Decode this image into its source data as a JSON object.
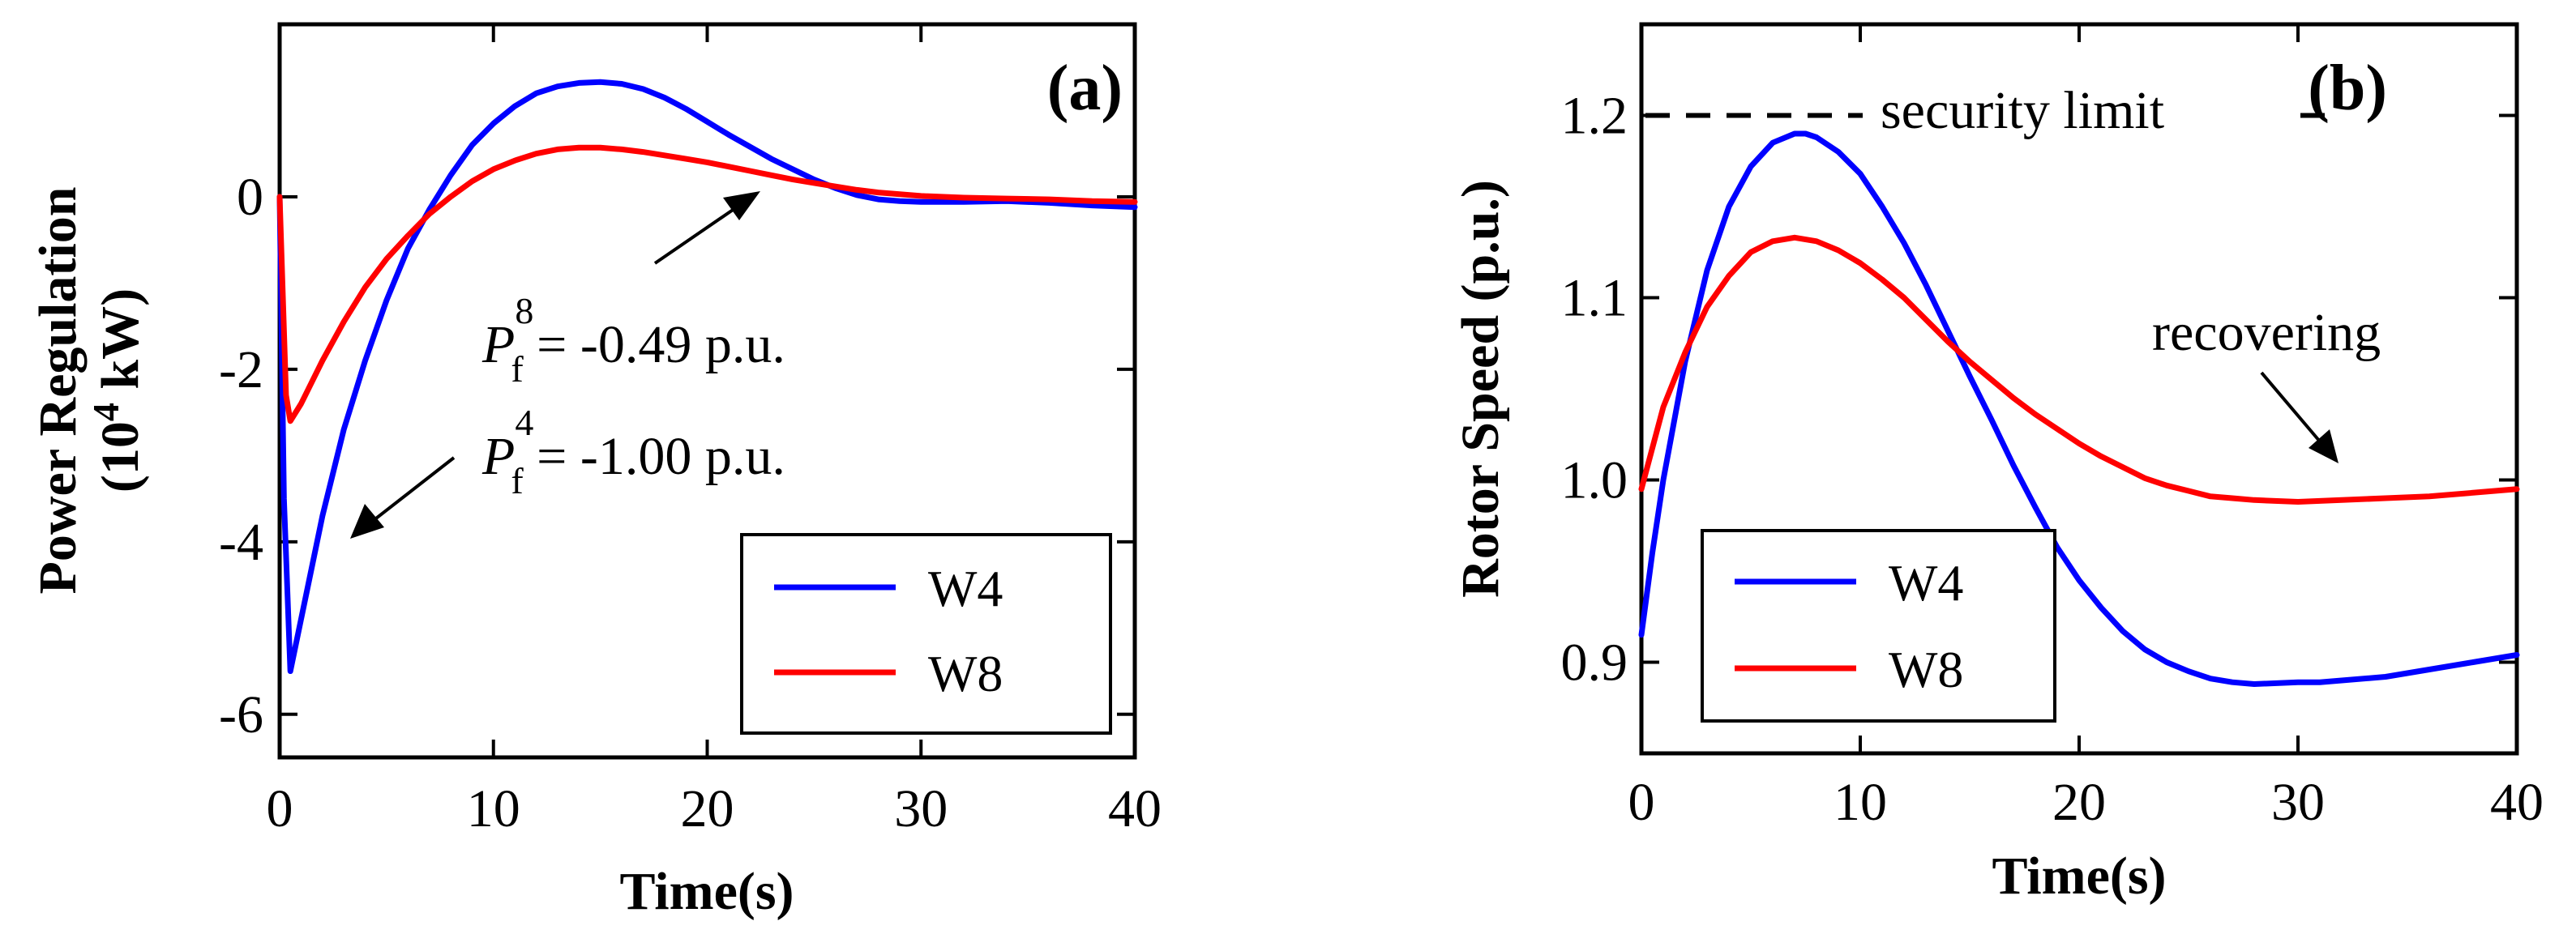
{
  "chart_data": [
    {
      "type": "line",
      "panel_label": "(a)",
      "xlabel": "Time(s)",
      "ylabel_line1": "Power Regulation",
      "ylabel_line2_pre": "(10",
      "ylabel_line2_sup": "4",
      "ylabel_line2_post": " kW)",
      "xlim": [
        0,
        40
      ],
      "ylim": [
        -6.5,
        2.0
      ],
      "xticks": [
        0,
        10,
        20,
        30,
        40
      ],
      "xtick_labels": [
        "0",
        "10",
        "20",
        "30",
        "40"
      ],
      "yticks": [
        -6,
        -4,
        -2,
        0
      ],
      "ytick_labels": [
        "-6",
        "-4",
        "-2",
        "0"
      ],
      "legend_position": "bottom-right",
      "series": [
        {
          "name": "W4",
          "color": "#0000ff",
          "points": [
            [
              0,
              0
            ],
            [
              0.2,
              -3.5
            ],
            [
              0.5,
              -5.5
            ],
            [
              1,
              -4.9
            ],
            [
              2,
              -3.7
            ],
            [
              3,
              -2.7
            ],
            [
              4,
              -1.9
            ],
            [
              5,
              -1.2
            ],
            [
              6,
              -0.6
            ],
            [
              7,
              -0.15
            ],
            [
              8,
              0.25
            ],
            [
              9,
              0.6
            ],
            [
              10,
              0.85
            ],
            [
              11,
              1.05
            ],
            [
              12,
              1.2
            ],
            [
              13,
              1.28
            ],
            [
              14,
              1.32
            ],
            [
              15,
              1.33
            ],
            [
              16,
              1.31
            ],
            [
              17,
              1.25
            ],
            [
              18,
              1.15
            ],
            [
              19,
              1.02
            ],
            [
              20,
              0.87
            ],
            [
              21,
              0.72
            ],
            [
              22,
              0.58
            ],
            [
              23,
              0.44
            ],
            [
              24,
              0.32
            ],
            [
              25,
              0.2
            ],
            [
              26,
              0.1
            ],
            [
              27,
              0.02
            ],
            [
              28,
              -0.03
            ],
            [
              29,
              -0.05
            ],
            [
              30,
              -0.06
            ],
            [
              32,
              -0.06
            ],
            [
              34,
              -0.05
            ],
            [
              36,
              -0.07
            ],
            [
              38,
              -0.1
            ],
            [
              40,
              -0.12
            ]
          ]
        },
        {
          "name": "W8",
          "color": "#ff0000",
          "points": [
            [
              0,
              0
            ],
            [
              0.3,
              -2.3
            ],
            [
              0.5,
              -2.6
            ],
            [
              1,
              -2.4
            ],
            [
              2,
              -1.9
            ],
            [
              3,
              -1.45
            ],
            [
              4,
              -1.05
            ],
            [
              5,
              -0.72
            ],
            [
              6,
              -0.45
            ],
            [
              7,
              -0.2
            ],
            [
              8,
              0
            ],
            [
              9,
              0.18
            ],
            [
              10,
              0.32
            ],
            [
              11,
              0.42
            ],
            [
              12,
              0.5
            ],
            [
              13,
              0.55
            ],
            [
              14,
              0.57
            ],
            [
              15,
              0.57
            ],
            [
              16,
              0.55
            ],
            [
              17,
              0.52
            ],
            [
              18,
              0.48
            ],
            [
              19,
              0.44
            ],
            [
              20,
              0.4
            ],
            [
              21,
              0.35
            ],
            [
              22,
              0.3
            ],
            [
              23,
              0.25
            ],
            [
              24,
              0.2
            ],
            [
              25,
              0.16
            ],
            [
              26,
              0.12
            ],
            [
              27,
              0.08
            ],
            [
              28,
              0.05
            ],
            [
              29,
              0.03
            ],
            [
              30,
              0.01
            ],
            [
              32,
              -0.01
            ],
            [
              34,
              -0.02
            ],
            [
              36,
              -0.03
            ],
            [
              38,
              -0.05
            ],
            [
              40,
              -0.06
            ]
          ]
        }
      ],
      "annotations": [
        {
          "base": "P",
          "sub": "f",
          "sup": "8",
          "rest": " = -0.49 p.u."
        },
        {
          "base": "P",
          "sub": "f",
          "sup": "4",
          "rest": " = -1.00 p.u."
        }
      ]
    },
    {
      "type": "line",
      "panel_label": "(b)",
      "xlabel": "Time(s)",
      "ylabel": "Rotor Speed (p.u.)",
      "xlim": [
        0,
        40
      ],
      "ylim": [
        0.85,
        1.25
      ],
      "xticks": [
        0,
        10,
        20,
        30,
        40
      ],
      "xtick_labels": [
        "0",
        "10",
        "20",
        "30",
        "40"
      ],
      "yticks": [
        0.9,
        1.0,
        1.1,
        1.2
      ],
      "ytick_labels": [
        "0.9",
        "1.0",
        "1.1",
        "1.2"
      ],
      "legend_position": "bottom-left",
      "security_limit": {
        "value": 1.2,
        "label": "security limit"
      },
      "series": [
        {
          "name": "W4",
          "color": "#0000ff",
          "points": [
            [
              0,
              0.915
            ],
            [
              0.5,
              0.96
            ],
            [
              1,
              1.0
            ],
            [
              2,
              1.065
            ],
            [
              3,
              1.115
            ],
            [
              4,
              1.15
            ],
            [
              5,
              1.172
            ],
            [
              6,
              1.185
            ],
            [
              7,
              1.19
            ],
            [
              7.5,
              1.19
            ],
            [
              8,
              1.188
            ],
            [
              9,
              1.18
            ],
            [
              10,
              1.168
            ],
            [
              11,
              1.15
            ],
            [
              12,
              1.13
            ],
            [
              13,
              1.107
            ],
            [
              14,
              1.082
            ],
            [
              15,
              1.057
            ],
            [
              16,
              1.033
            ],
            [
              17,
              1.008
            ],
            [
              18,
              0.985
            ],
            [
              19,
              0.963
            ],
            [
              20,
              0.945
            ],
            [
              21,
              0.93
            ],
            [
              22,
              0.917
            ],
            [
              23,
              0.907
            ],
            [
              24,
              0.9
            ],
            [
              25,
              0.895
            ],
            [
              26,
              0.891
            ],
            [
              27,
              0.889
            ],
            [
              28,
              0.888
            ],
            [
              30,
              0.889
            ],
            [
              31,
              0.889
            ],
            [
              32,
              0.89
            ],
            [
              34,
              0.892
            ],
            [
              36,
              0.896
            ],
            [
              38,
              0.9
            ],
            [
              40,
              0.904
            ]
          ]
        },
        {
          "name": "W8",
          "color": "#ff0000",
          "points": [
            [
              0,
              0.995
            ],
            [
              1,
              1.04
            ],
            [
              2,
              1.07
            ],
            [
              3,
              1.095
            ],
            [
              4,
              1.112
            ],
            [
              5,
              1.125
            ],
            [
              6,
              1.131
            ],
            [
              7,
              1.133
            ],
            [
              8,
              1.131
            ],
            [
              9,
              1.126
            ],
            [
              10,
              1.119
            ],
            [
              11,
              1.11
            ],
            [
              12,
              1.1
            ],
            [
              13,
              1.088
            ],
            [
              14,
              1.076
            ],
            [
              15,
              1.065
            ],
            [
              16,
              1.055
            ],
            [
              17,
              1.045
            ],
            [
              18,
              1.036
            ],
            [
              19,
              1.028
            ],
            [
              20,
              1.02
            ],
            [
              21,
              1.013
            ],
            [
              22,
              1.007
            ],
            [
              23,
              1.001
            ],
            [
              24,
              0.997
            ],
            [
              25,
              0.994
            ],
            [
              26,
              0.991
            ],
            [
              27,
              0.99
            ],
            [
              28,
              0.989
            ],
            [
              30,
              0.988
            ],
            [
              32,
              0.989
            ],
            [
              34,
              0.99
            ],
            [
              36,
              0.991
            ],
            [
              38,
              0.993
            ],
            [
              40,
              0.995
            ]
          ]
        }
      ],
      "annotations": [
        {
          "text": "recovering"
        }
      ]
    }
  ]
}
